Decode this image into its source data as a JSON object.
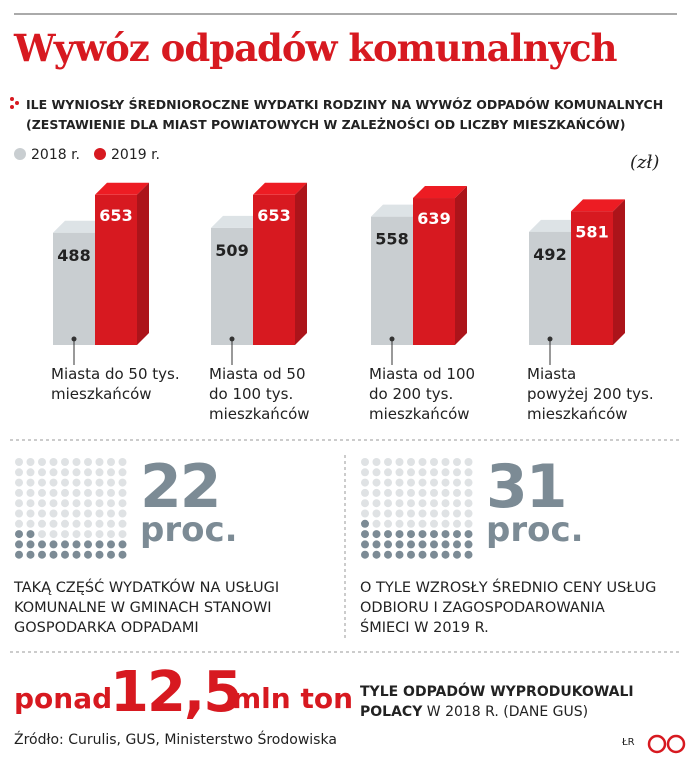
{
  "title": "Wywóz odpadów komunalnych",
  "chart_data": {
    "type": "bar",
    "subtitle": [
      "ILE WYNIOSŁY ŚREDNIOROCZNE WYDATKI RODZINY NA WYWÓZ ODPADÓW KOMUNALNYCH",
      "(ZESTAWIENIE DLA MIAST POWIATOWYCH W ZALEŻNOŚCI OD LICZBY MIESZKAŃCÓW)"
    ],
    "unit": "(zł)",
    "categories": [
      "Miasta do 50 tys.\nmieszkańców",
      "Miasta od 50\ndo 100 tys.\nmieszkańców",
      "Miasta od 100\ndo 200 tys.\nmieszkańców",
      "Miasta\npowyżej 200 tys.\nmieszkańców"
    ],
    "series": [
      {
        "name": "2018 r.",
        "color": "#c9ced1",
        "values": [
          488,
          509,
          558,
          492
        ]
      },
      {
        "name": "2019 r.",
        "color": "#d71920",
        "values": [
          653,
          653,
          639,
          581
        ]
      }
    ]
  },
  "stats": [
    {
      "value": 22,
      "unit": "proc.",
      "text": "TAKĄ CZĘŚĆ WYDATKÓW NA USŁUGI\nKOMUNALNE W GMINACH STANOWI\nGOSPODARKA ODPADAMI"
    },
    {
      "value": 31,
      "unit": "proc.",
      "text": "O TYLE WZROSŁY ŚREDNIO CENY USŁUG\nODBIORU I ZAGOSPODAROWANIA\nŚMIECI W 2019 R."
    }
  ],
  "total": {
    "prefix": "ponad",
    "value": "12,5",
    "unit": "mln ton",
    "note_bold": "TYLE ODPADÓW WYPRODUKOWALI\nPOLACY",
    "note": " W 2018 R. (DANE GUS)"
  },
  "source": "Źródło: Curulis, GUS, Ministerstwo Środowiska",
  "credit": "ŁR"
}
